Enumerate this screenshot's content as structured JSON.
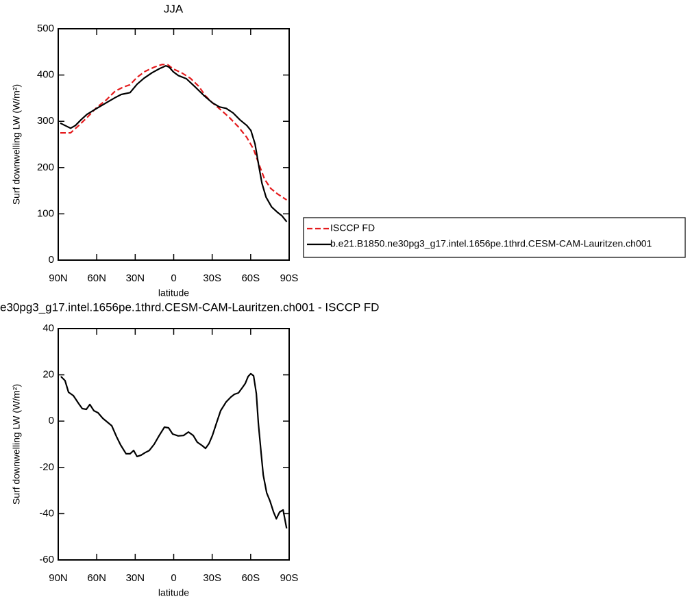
{
  "chart_data": [
    {
      "type": "line",
      "title": "JJA",
      "xlabel": "latitude",
      "ylabel": "Surf downwelling LW (W/m²)",
      "xlim": [
        90,
        -90
      ],
      "xticks": [
        {
          "value": 90,
          "label": "90N"
        },
        {
          "value": 60,
          "label": "60N"
        },
        {
          "value": 30,
          "label": "30N"
        },
        0,
        {
          "value": -30,
          "label": "30S"
        },
        {
          "value": -60,
          "label": "60S"
        },
        {
          "value": -90,
          "label": "90S"
        }
      ],
      "ylim": [
        0,
        500
      ],
      "yticks": [
        0,
        100,
        200,
        300,
        400,
        500
      ],
      "series": [
        {
          "name": "ISCCP FD",
          "color": "#e41a1c",
          "style": "dashed",
          "x": [
            88.4,
            80.4,
            74,
            67.6,
            60,
            52.6,
            45.7,
            39.3,
            34,
            28.6,
            22.2,
            15.2,
            8.8,
            4.5,
            0.3,
            -6.1,
            -13,
            -19.4,
            -24.8,
            -30.2,
            -36.6,
            -43.5,
            -50.4,
            -56.8,
            -62.2,
            -66.5,
            -70.8,
            -75.6,
            -80.9,
            -88.1
          ],
          "values": [
            275,
            275,
            291,
            308,
            330,
            346,
            365,
            374,
            379,
            395,
            408,
            417,
            423,
            422,
            413,
            405,
            393,
            376,
            355,
            340,
            325,
            308,
            288,
            266,
            240,
            207,
            175,
            155,
            143,
            130
          ]
        },
        {
          "name": "b.e21.B1850.ne30pg3_g17.intel.1656pe.1thrd.CESM-CAM-Lauritzen.ch001",
          "color": "#000000",
          "style": "solid",
          "x": [
            88.4,
            84.7,
            80.4,
            76.6,
            72.4,
            67.6,
            60,
            52.6,
            45.7,
            40.9,
            34,
            28.6,
            23.2,
            16.8,
            10.9,
            6.1,
            3.5,
            0.3,
            -3.5,
            -9.9,
            -16.8,
            -23.8,
            -30.2,
            -35.6,
            -40.9,
            -46.3,
            -51.7,
            -57,
            -60.2,
            -63.4,
            -66.1,
            -68.8,
            -72,
            -76.3,
            -80.6,
            -84.3,
            -88.1
          ],
          "values": [
            296,
            291,
            285,
            291,
            303,
            315,
            328,
            340,
            351,
            358,
            362,
            380,
            393,
            405,
            414,
            420,
            417,
            407,
            399,
            392,
            374,
            355,
            340,
            331,
            328,
            318,
            303,
            291,
            280,
            251,
            207,
            166,
            136,
            115,
            104,
            96,
            83
          ]
        }
      ]
    },
    {
      "type": "line",
      "title": "e30pg3_g17.intel.1656pe.1thrd.CESM-CAM-Lauritzen.ch001 - ISCCP FD",
      "xlabel": "latitude",
      "ylabel": "Surf downwelling LW (W/m²)",
      "xlim": [
        90,
        -90
      ],
      "xticks": [
        {
          "value": 90,
          "label": "90N"
        },
        {
          "value": 60,
          "label": "60N"
        },
        {
          "value": 30,
          "label": "30N"
        },
        0,
        {
          "value": -30,
          "label": "30S"
        },
        {
          "value": -60,
          "label": "60S"
        },
        {
          "value": -90,
          "label": "90S"
        }
      ],
      "ylim": [
        -60,
        40
      ],
      "yticks": [
        -60,
        -40,
        -20,
        0,
        20,
        40
      ],
      "series": [
        {
          "color": "#000000",
          "style": "solid",
          "x": [
            87.9,
            84.7,
            82,
            78.2,
            74,
            71.3,
            68.1,
            65.4,
            62.2,
            59,
            55.3,
            48.3,
            44.6,
            41.4,
            37.1,
            34,
            31.2,
            28.6,
            25.4,
            22.2,
            19,
            15.2,
            11.5,
            7.2,
            4,
            0.8,
            -3.5,
            -7.7,
            -11.5,
            -15.2,
            -18.4,
            -22.2,
            -24.8,
            -27.5,
            -30.2,
            -33.4,
            -36.6,
            -40.9,
            -44.6,
            -47.3,
            -50.5,
            -53.7,
            -55.8,
            -58,
            -60.1,
            -62.3,
            -64.4,
            -66,
            -68.2,
            -69.8,
            -72.5,
            -75.1,
            -77.8,
            -80,
            -82.6,
            -85.3,
            -88
          ],
          "values": [
            19.3,
            17.5,
            12.5,
            11,
            7.5,
            5.4,
            5.1,
            7.2,
            4.5,
            3.6,
            1.2,
            -2,
            -6.7,
            -10.3,
            -14.1,
            -14.1,
            -12.7,
            -15.3,
            -14.7,
            -13.6,
            -12.7,
            -10,
            -6.4,
            -2.6,
            -2.9,
            -5.6,
            -6.4,
            -6.2,
            -4.7,
            -6.2,
            -9.1,
            -10.6,
            -11.8,
            -9.7,
            -6.2,
            -0.8,
            4.5,
            8.3,
            10.4,
            11.6,
            12.2,
            14.6,
            16.3,
            19.3,
            20.5,
            19.6,
            11.9,
            -1.1,
            -14.1,
            -23.3,
            -31,
            -34.6,
            -39.3,
            -42.2,
            -39.3,
            -38.4,
            -46.4
          ]
        }
      ]
    }
  ]
}
